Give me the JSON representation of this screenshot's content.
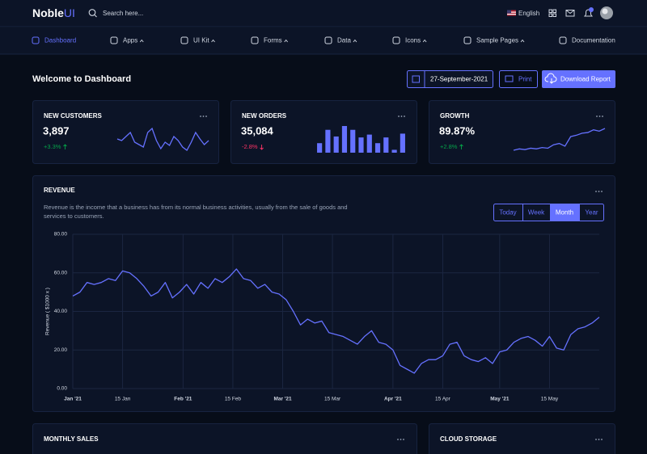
{
  "header": {
    "logo": "Noble",
    "logo_accent": "UI",
    "search_placeholder": "Search here...",
    "language": "English"
  },
  "nav": [
    {
      "label": "Dashboard",
      "active": true,
      "dropdown": false
    },
    {
      "label": "Apps",
      "active": false,
      "dropdown": true
    },
    {
      "label": "UI Kit",
      "active": false,
      "dropdown": true
    },
    {
      "label": "Forms",
      "active": false,
      "dropdown": true
    },
    {
      "label": "Data",
      "active": false,
      "dropdown": true
    },
    {
      "label": "Icons",
      "active": false,
      "dropdown": true
    },
    {
      "label": "Sample Pages",
      "active": false,
      "dropdown": true
    },
    {
      "label": "Documentation",
      "active": false,
      "dropdown": false
    }
  ],
  "page": {
    "title": "Welcome to Dashboard",
    "date": "27-September-2021",
    "print": "Print",
    "download": "Download Report"
  },
  "cards": [
    {
      "title": "NEW CUSTOMERS",
      "value": "3,897",
      "delta": "+3.3%",
      "trend": "up",
      "chart": {
        "type": "line",
        "color": "#6571ff",
        "values": [
          52,
          50,
          55,
          60,
          48,
          45,
          42,
          60,
          65,
          50,
          40,
          48,
          44,
          55,
          50,
          42,
          38,
          48,
          60,
          52,
          45,
          50
        ]
      }
    },
    {
      "title": "NEW ORDERS",
      "value": "35,084",
      "delta": "-2.8%",
      "trend": "down",
      "chart": {
        "type": "bar",
        "color": "#6571ff",
        "values": [
          10,
          24,
          17,
          28,
          24,
          16,
          19,
          10,
          16,
          3,
          20
        ]
      }
    },
    {
      "title": "GROWTH",
      "value": "89.87%",
      "delta": "+2.8%",
      "trend": "up",
      "chart": {
        "type": "line",
        "color": "#6571ff",
        "values": [
          30,
          32,
          31,
          33,
          32,
          34,
          33,
          38,
          40,
          36,
          50,
          52,
          55,
          56,
          60,
          58,
          62
        ]
      }
    }
  ],
  "revenue": {
    "title": "REVENUE",
    "description": "Revenue is the income that a business has from its normal business activities, usually from the sale of goods and services to customers.",
    "ranges": [
      {
        "label": "Today",
        "active": false
      },
      {
        "label": "Week",
        "active": false
      },
      {
        "label": "Month",
        "active": true
      },
      {
        "label": "Year",
        "active": false
      }
    ],
    "chart": {
      "type": "line",
      "y_label": "Revenue ( $1000 x )",
      "color": "#6571ff",
      "grid": true,
      "xlim": [
        "2021-01-01",
        "2021-05-29"
      ],
      "xticks": [
        {
          "value": "2021-01-01",
          "label": "Jan '21"
        },
        {
          "value": "2021-01-15",
          "label": "15 Jan"
        },
        {
          "value": "2021-02-01",
          "label": "Feb '21"
        },
        {
          "value": "2021-02-15",
          "label": "15 Feb"
        },
        {
          "value": "2021-03-01",
          "label": "Mar '21"
        },
        {
          "value": "2021-03-15",
          "label": "15 Mar"
        },
        {
          "value": "2021-04-01",
          "label": "Apr '21"
        },
        {
          "value": "2021-04-15",
          "label": "15 Apr"
        },
        {
          "value": "2021-05-01",
          "label": "May '21"
        },
        {
          "value": "2021-05-15",
          "label": "15 May"
        }
      ],
      "ylim": [
        0,
        80
      ],
      "yticks": [
        {
          "value": 0,
          "label": "0.00"
        },
        {
          "value": 20,
          "label": "20.00"
        },
        {
          "value": 40,
          "label": "40.00"
        },
        {
          "value": 60,
          "label": "60.00"
        },
        {
          "value": 80,
          "label": "80.00"
        }
      ],
      "x": [
        "2021-01-01",
        "2021-01-03",
        "2021-01-05",
        "2021-01-07",
        "2021-01-09",
        "2021-01-11",
        "2021-01-13",
        "2021-01-15",
        "2021-01-17",
        "2021-01-19",
        "2021-01-21",
        "2021-01-23",
        "2021-01-25",
        "2021-01-27",
        "2021-01-29",
        "2021-01-31",
        "2021-02-02",
        "2021-02-04",
        "2021-02-06",
        "2021-02-08",
        "2021-02-10",
        "2021-02-12",
        "2021-02-14",
        "2021-02-16",
        "2021-02-18",
        "2021-02-20",
        "2021-02-22",
        "2021-02-24",
        "2021-02-26",
        "2021-02-28",
        "2021-03-02",
        "2021-03-04",
        "2021-03-06",
        "2021-03-08",
        "2021-03-10",
        "2021-03-12",
        "2021-03-14",
        "2021-03-16",
        "2021-03-18",
        "2021-03-20",
        "2021-03-22",
        "2021-03-24",
        "2021-03-26",
        "2021-03-28",
        "2021-03-30",
        "2021-04-01",
        "2021-04-03",
        "2021-04-05",
        "2021-04-07",
        "2021-04-09",
        "2021-04-11",
        "2021-04-13",
        "2021-04-15",
        "2021-04-17",
        "2021-04-19",
        "2021-04-21",
        "2021-04-23",
        "2021-04-25",
        "2021-04-27",
        "2021-04-29",
        "2021-05-01",
        "2021-05-03",
        "2021-05-05",
        "2021-05-07",
        "2021-05-09",
        "2021-05-11",
        "2021-05-13",
        "2021-05-15",
        "2021-05-17",
        "2021-05-19",
        "2021-05-21",
        "2021-05-23",
        "2021-05-25",
        "2021-05-27",
        "2021-05-29"
      ],
      "values": [
        48,
        50,
        55,
        54,
        55,
        57,
        56,
        61,
        60,
        57,
        53,
        48,
        50,
        55,
        47,
        50,
        54,
        49,
        55,
        52,
        57,
        55,
        58,
        62,
        57,
        56,
        52,
        54,
        50,
        49,
        46,
        40,
        33,
        36,
        34,
        35,
        29,
        28,
        27,
        25,
        23,
        27,
        30,
        24,
        23,
        20,
        12,
        10,
        8,
        13,
        15,
        15,
        17,
        23,
        24,
        17,
        15,
        14,
        16,
        13,
        19,
        20,
        24,
        26,
        27,
        25,
        22,
        27,
        21,
        20,
        28,
        31,
        32,
        34,
        37
      ]
    }
  },
  "bottom_cards": [
    {
      "title": "MONTHLY SALES"
    },
    {
      "title": "CLOUD STORAGE"
    }
  ]
}
